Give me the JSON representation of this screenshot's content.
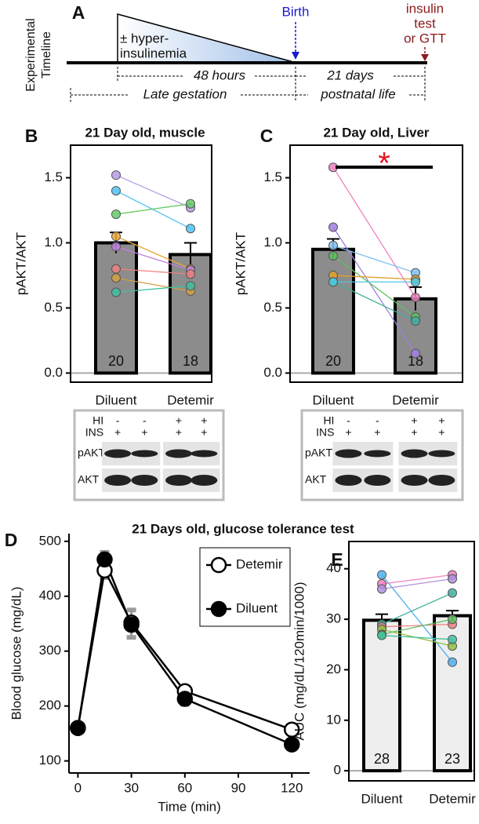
{
  "timeline": {
    "panel": "A",
    "ylabel": [
      "Experimental",
      "Timeline"
    ],
    "treatment": [
      "± hyper-",
      "insulinemia"
    ],
    "birth": "Birth",
    "endpoint": [
      "insulin",
      "test",
      "or GTT"
    ],
    "spans": [
      "48 hours",
      "21 days",
      "Late gestation",
      "postnatal life"
    ]
  },
  "chart_data": [
    {
      "type": "bar",
      "panel": "B",
      "title": "21 Day old, muscle",
      "ylabel": "pAKT/AKT",
      "categories": [
        "Diluent",
        "Detemir"
      ],
      "values": [
        1.0,
        0.91
      ],
      "errors": [
        0.08,
        0.09
      ],
      "n": [
        20,
        18
      ],
      "color": "#8c8c8c",
      "ylim": [
        -0.07,
        1.75
      ],
      "yticks": [
        {
          "value": 0,
          "label": "0.0"
        },
        0.5,
        {
          "value": 1,
          "label": "1.0"
        },
        1.5
      ],
      "pairs": [
        {
          "color": "#b89ce8",
          "values": [
            1.52,
            1.27
          ]
        },
        {
          "color": "#4fc3f7",
          "values": [
            1.4,
            1.11
          ]
        },
        {
          "color": "#66cc66",
          "values": [
            1.22,
            1.3
          ]
        },
        {
          "color": "#e8a838",
          "values": [
            1.05,
            0.8
          ]
        },
        {
          "color": "#c080e0",
          "values": [
            0.97,
            0.79
          ]
        },
        {
          "color": "#f08080",
          "values": [
            0.8,
            0.76
          ]
        },
        {
          "color": "#d4a040",
          "values": [
            0.73,
            0.63
          ]
        },
        {
          "color": "#40c0a0",
          "values": [
            0.62,
            0.67
          ]
        }
      ],
      "blot": {
        "rows": [
          {
            "label": "HI",
            "signs": [
              "-",
              "-",
              "+",
              "+"
            ]
          },
          {
            "label": "INS",
            "signs": [
              "+",
              "+",
              "+",
              "+"
            ]
          }
        ],
        "bands": [
          "pAKT",
          "AKT"
        ]
      }
    },
    {
      "type": "bar",
      "panel": "C",
      "title": "21 Day old, Liver",
      "ylabel": "pAKT/AKT",
      "categories": [
        "Diluent",
        "Detemir"
      ],
      "values": [
        0.95,
        0.57
      ],
      "errors": [
        0.08,
        0.09
      ],
      "n": [
        20,
        18
      ],
      "color": "#8c8c8c",
      "significance": "*",
      "ylim": [
        -0.07,
        1.75
      ],
      "yticks": [
        {
          "value": 0,
          "label": "0.0"
        },
        0.5,
        {
          "value": 1,
          "label": "1.0"
        },
        1.5
      ],
      "pairs": [
        {
          "color": "#f080c0",
          "values": [
            1.58,
            0.58
          ]
        },
        {
          "color": "#a080e0",
          "values": [
            1.12,
            0.15
          ]
        },
        {
          "color": "#80c0f0",
          "values": [
            0.98,
            0.77
          ]
        },
        {
          "color": "#60c060",
          "values": [
            0.9,
            0.43
          ]
        },
        {
          "color": "#e0a030",
          "values": [
            0.75,
            0.72
          ]
        },
        {
          "color": "#40b0a0",
          "values": [
            0.7,
            0.4
          ]
        },
        {
          "color": "#50c8e0",
          "values": [
            0.7,
            0.7
          ]
        }
      ],
      "blot": {
        "rows": [
          {
            "label": "HI",
            "signs": [
              "-",
              "-",
              "+",
              "+"
            ]
          },
          {
            "label": "INS",
            "signs": [
              "+",
              "+",
              "+",
              "+"
            ]
          }
        ],
        "bands": [
          "pAKT",
          "AKT"
        ]
      }
    },
    {
      "type": "line",
      "panel": "D",
      "title": "21 Days old, glucose tolerance test",
      "xlabel": "Time (min)",
      "ylabel": "Blood glucose (mg/dL)",
      "x": [
        0,
        15,
        30,
        60,
        120
      ],
      "series": [
        {
          "name": "Detemir",
          "color": "#ffffff",
          "values": [
            160,
            447,
            352,
            227,
            157
          ],
          "errors": [
            5,
            15,
            25,
            10,
            6
          ]
        },
        {
          "name": "Diluent",
          "color": "#000000",
          "values": [
            160,
            467,
            348,
            213,
            130
          ],
          "errors": [
            5,
            15,
            25,
            12,
            6
          ]
        }
      ],
      "xlim": [
        -5,
        130
      ],
      "ylim": [
        78,
        514
      ],
      "xticks": [
        0,
        30,
        60,
        90,
        120
      ],
      "yticks": [
        100,
        200,
        300,
        400,
        500
      ],
      "legend": "upper right"
    },
    {
      "type": "bar",
      "panel": "E",
      "ylabel": "AUC (mg/dL/120min/1000)",
      "categories": [
        "Diluent",
        "Detemir"
      ],
      "values": [
        29.8,
        30.7
      ],
      "errors": [
        1.2,
        1.0
      ],
      "n": [
        28,
        23
      ],
      "color": "#eeeeee",
      "ylim": [
        -2,
        45.4
      ],
      "yticks": [
        0,
        10,
        20,
        30,
        40
      ],
      "pairs": [
        {
          "color": "#4fb0f0",
          "values": [
            38.8,
            21.5
          ]
        },
        {
          "color": "#f080c0",
          "values": [
            37,
            38.8
          ]
        },
        {
          "color": "#b090e0",
          "values": [
            36,
            38
          ]
        },
        {
          "color": "#40b0a0",
          "values": [
            29,
            35.2
          ]
        },
        {
          "color": "#f08080",
          "values": [
            28.5,
            29
          ]
        },
        {
          "color": "#90c040",
          "values": [
            28,
            24.7
          ]
        },
        {
          "color": "#60c060",
          "values": [
            27,
            30
          ]
        },
        {
          "color": "#40c0a0",
          "values": [
            26.8,
            26
          ]
        }
      ]
    }
  ]
}
